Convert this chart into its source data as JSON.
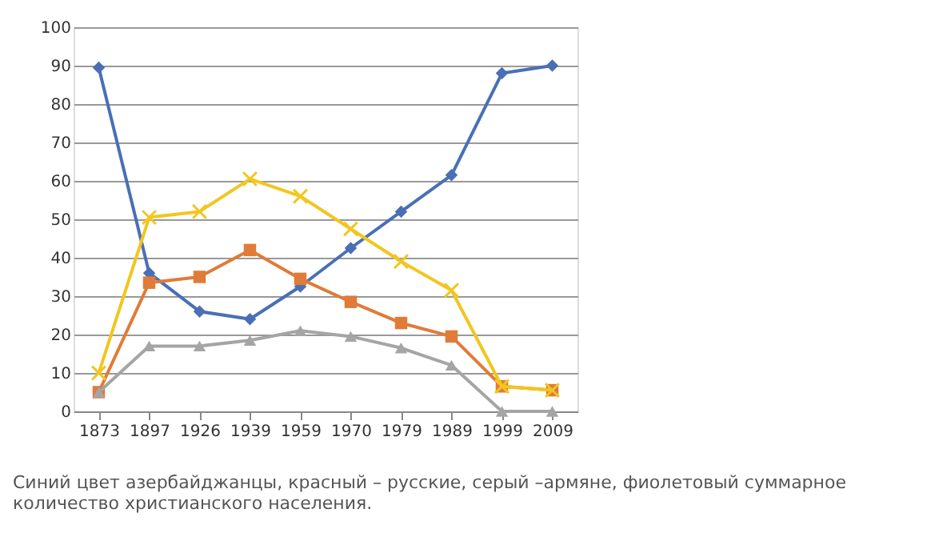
{
  "chart_data": {
    "type": "line",
    "categories": [
      "1873",
      "1897",
      "1926",
      "1939",
      "1959",
      "1970",
      "1979",
      "1989",
      "1999",
      "2009"
    ],
    "series": [
      {
        "color": "#4a6fb5",
        "marker": "diamond",
        "values": [
          89.5,
          36,
          26,
          24,
          32.5,
          42.5,
          52,
          61.5,
          88,
          90
        ]
      },
      {
        "color": "#e07b39",
        "marker": "square",
        "values": [
          5,
          33.5,
          35,
          42,
          34.5,
          28.5,
          23,
          19.5,
          6.5,
          5.5
        ]
      },
      {
        "color": "#a5a5a5",
        "marker": "triangle",
        "values": [
          5,
          17,
          17,
          18.5,
          21,
          19.5,
          16.5,
          12,
          0,
          0
        ]
      },
      {
        "color": "#f2c61f",
        "marker": "cross",
        "values": [
          10,
          50.5,
          52,
          60.5,
          56,
          47.5,
          39,
          31.5,
          6.5,
          5.5
        ]
      }
    ],
    "ylim": [
      0,
      100
    ],
    "yticks": [
      0,
      10,
      20,
      30,
      40,
      50,
      60,
      70,
      80,
      90,
      100
    ],
    "grid": "y",
    "line_style": "solid",
    "annotations": [
      "Синий цвет азербайджанцы, красный – русские, серый –армяне, фиолетовый суммарное количество христианского населения."
    ]
  }
}
